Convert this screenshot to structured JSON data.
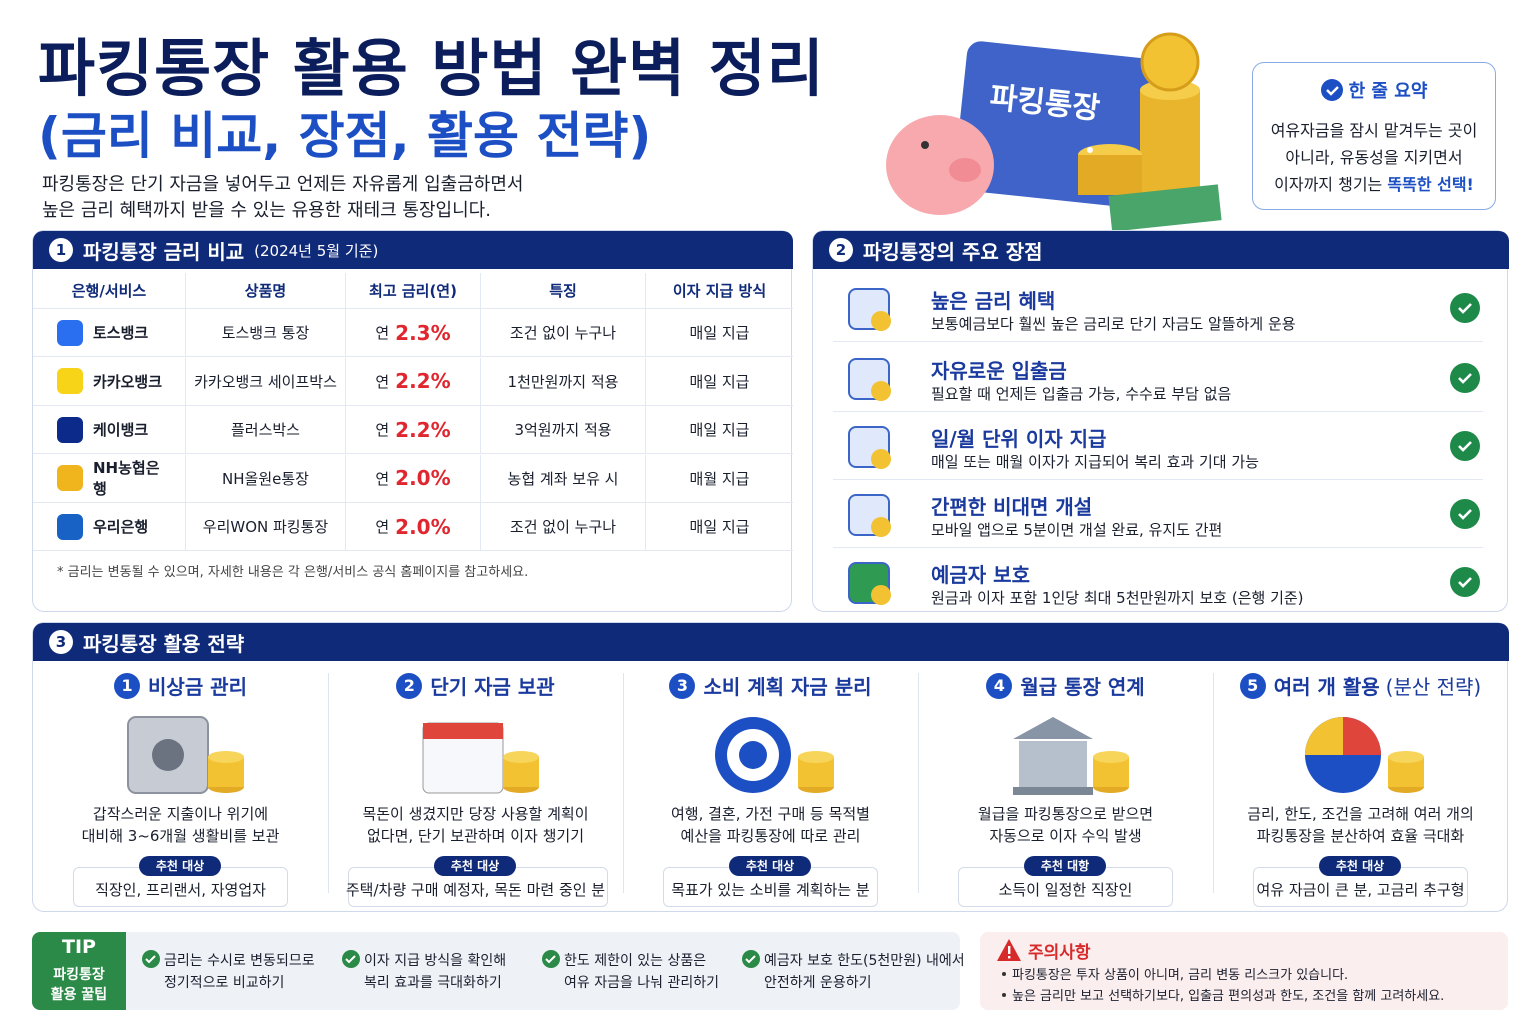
{
  "header": {
    "title": "파킹통장 활용 방법 완벽 정리",
    "subtitle": "(금리 비교, 장점, 활용 전략)",
    "description": [
      "파킹통장은 단기 자금을 넣어두고 언제든 자유롭게 입출금하면서",
      "높은 금리 혜택까지 받을 수 있는 유용한 재테크 통장입니다."
    ],
    "illustration_label": "파킹통장"
  },
  "summary": {
    "title": "한 줄 요약",
    "lines": [
      "여유자금을 잠시 맡겨두는 곳이",
      "아니라, 유동성을 지키면서",
      "이자까지 챙기는"
    ],
    "highlight": "똑똑한 선택!"
  },
  "rate_table": {
    "number": "1",
    "title": "파킹통장 금리 비교",
    "note": "(2024년 5월 기준)",
    "columns": [
      "은행/서비스",
      "상품명",
      "최고 금리(연)",
      "특징",
      "이자 지급 방식"
    ],
    "rows": [
      {
        "bank": "토스뱅크",
        "product": "토스뱅크 통장",
        "rate_prefix": "연",
        "rate": "2.3%",
        "feature": "조건 없이 누구나",
        "payment": "매일 지급"
      },
      {
        "bank": "카카오뱅크",
        "product": "카카오뱅크 세이프박스",
        "rate_prefix": "연",
        "rate": "2.2%",
        "feature": "1천만원까지 적용",
        "payment": "매일 지급"
      },
      {
        "bank": "케이뱅크",
        "product": "플러스박스",
        "rate_prefix": "연",
        "rate": "2.2%",
        "feature": "3억원까지 적용",
        "payment": "매일 지급"
      },
      {
        "bank": "NH농협은행",
        "product": "NH올원e통장",
        "rate_prefix": "연",
        "rate": "2.0%",
        "feature": "농협 계좌 보유 시",
        "payment": "매월 지급"
      },
      {
        "bank": "우리은행",
        "product": "우리WON 파킹통장",
        "rate_prefix": "연",
        "rate": "2.0%",
        "feature": "조건 없이 누구나",
        "payment": "매일 지급"
      }
    ],
    "footnote": "* 금리는 변동될 수 있으며, 자세한 내용은 각 은행/서비스 공식 홈페이지를 참고하세요."
  },
  "benefits": {
    "number": "2",
    "title": "파킹통장의 주요 장점",
    "items": [
      {
        "title": "높은 금리 혜택",
        "description": "보통예금보다 훨씬 높은 금리로 단기 자금도 알뜰하게 운용"
      },
      {
        "title": "자유로운 입출금",
        "description": "필요할 때 언제든 입출금 가능, 수수료 부담 없음"
      },
      {
        "title": "일/월 단위 이자 지급",
        "description": "매일 또는 매월 이자가 지급되어 복리 효과 기대 가능"
      },
      {
        "title": "간편한 비대면 개설",
        "description": "모바일 앱으로 5분이면 개설 완료, 유지도 간편"
      },
      {
        "title": "예금자 보호",
        "description": "원금과 이자 포함 1인당 최대 5천만원까지 보호 (은행 기준)"
      }
    ]
  },
  "strategies": {
    "number": "3",
    "title": "파킹통장 활용 전략",
    "items": [
      {
        "number": "1",
        "title": "비상금 관리",
        "description": [
          "갑작스러운 지출이나 위기에",
          "대비해 3~6개월 생활비를 보관"
        ],
        "badge": "추천 대상",
        "target": "직장인, 프리랜서, 자영업자"
      },
      {
        "number": "2",
        "title": "단기 자금 보관",
        "description": [
          "목돈이 생겼지만 당장 사용할 계획이",
          "없다면, 단기 보관하며 이자 챙기기"
        ],
        "badge": "추천 대상",
        "target": "주택/차량 구매 예정자, 목돈 마련 중인 분"
      },
      {
        "number": "3",
        "title": "소비 계획 자금 분리",
        "description": [
          "여행, 결혼, 가전 구매 등 목적별",
          "예산을 파킹통장에 따로 관리"
        ],
        "badge": "추천 대상",
        "target": "목표가 있는 소비를 계획하는 분"
      },
      {
        "number": "4",
        "title": "월급 통장 연계",
        "description": [
          "월급을 파킹통장으로 받으면",
          "자동으로 이자 수익 발생"
        ],
        "badge": "추천 대항",
        "target": "소득이 일정한 직장인"
      },
      {
        "number": "5",
        "title": "여러 개 활용",
        "title_note": "(분산 전략)",
        "description": [
          "금리, 한도, 조건을 고려해 여러 개의",
          "파킹통장을 분산하여 효율 극대화"
        ],
        "badge": "추천 대상",
        "target": "여유 자금이 큰 분, 고금리 추구형"
      }
    ]
  },
  "tip": {
    "label": "TIP",
    "caption": [
      "파킹통장",
      "활용 꿀팁"
    ],
    "items": [
      [
        "금리는 수시로 변동되므로",
        "정기적으로 비교하기"
      ],
      [
        "이자 지급 방식을 확인해",
        "복리 효과를 극대화하기"
      ],
      [
        "한도 제한이 있는 상품은",
        "여유 자금을 나눠 관리하기"
      ],
      [
        "예금자 보호 한도(5천만원) 내에서",
        "안전하게 운용하기"
      ]
    ]
  },
  "caution": {
    "title": "주의사항",
    "items": [
      "파킹통장은 투자 상품이 아니며, 금리 변동 리스크가 있습니다.",
      "높은 금리만 보고 선택하기보다, 입출금 편의성과 한도, 조건을 함께 고려하세요."
    ]
  }
}
